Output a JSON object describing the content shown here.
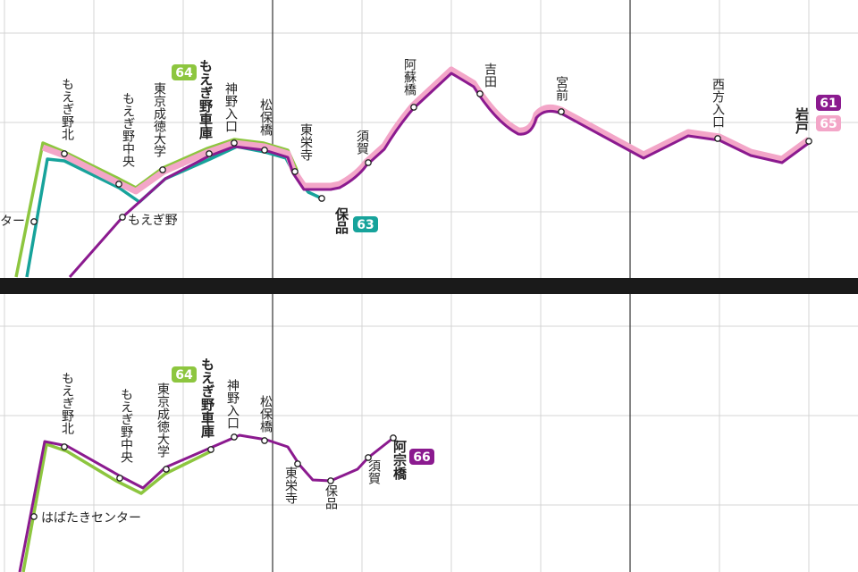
{
  "top": {
    "stops": [
      "ター",
      "もえぎ野北",
      "もえぎ野中央",
      "東京成徳大学",
      "もえぎ野車庫",
      "神野入口",
      "松保橋",
      "東栄寺",
      "須賀",
      "阿蘇橋",
      "吉田",
      "宮前",
      "西方入口",
      "岩戸",
      "保品",
      "もえぎ野"
    ],
    "routes": [
      "64",
      "61",
      "65",
      "63"
    ]
  },
  "bottom": {
    "stops": [
      "はばたきセンター",
      "もえぎ野北",
      "もえぎ野中央",
      "東京成徳大学",
      "もえぎ野車庫",
      "神野入口",
      "松保橋",
      "東栄寺",
      "保品",
      "須賀",
      "阿宗橋"
    ],
    "routes": [
      "64",
      "66"
    ]
  }
}
